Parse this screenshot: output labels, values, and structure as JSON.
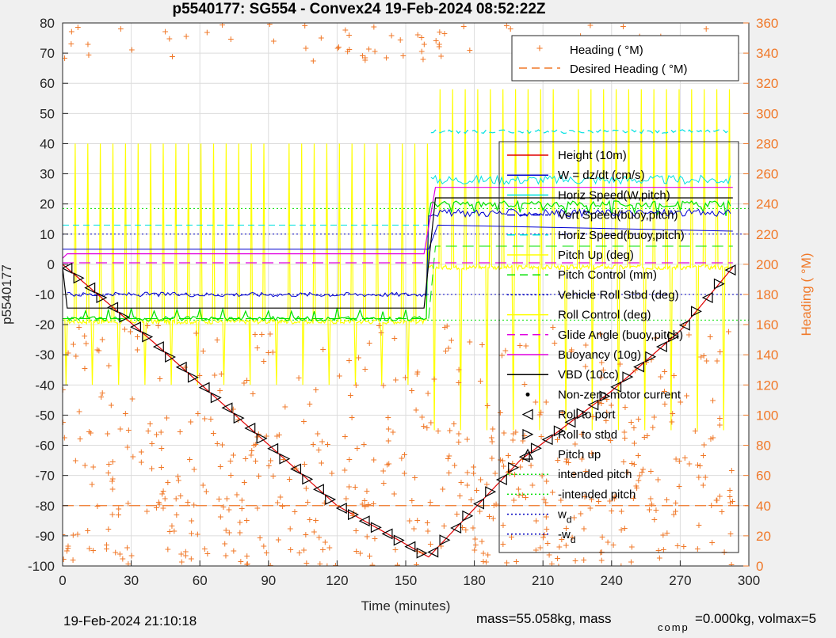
{
  "chart_data": {
    "type": "line",
    "title": "p5540177: SG554 - Convex24 19-Feb-2024 08:52:22Z",
    "xlabel": "Time (minutes)",
    "ylabel": "p5540177",
    "y2label": "Heading (  °M)",
    "xlim": [
      0,
      300
    ],
    "ylim": [
      -100,
      80
    ],
    "y2lim": [
      0,
      360
    ],
    "x_ticks": [
      "0",
      "30",
      "60",
      "90",
      "120",
      "150",
      "180",
      "210",
      "240",
      "270",
      "300"
    ],
    "y_ticks": [
      "80",
      "70",
      "60",
      "50",
      "40",
      "30",
      "20",
      "10",
      "0",
      "-10",
      "-20",
      "-30",
      "-40",
      "-50",
      "-60",
      "-70",
      "-80",
      "-90",
      "-100"
    ],
    "y2_ticks": [
      "360",
      "340",
      "320",
      "300",
      "280",
      "260",
      "240",
      "220",
      "200",
      "180",
      "160",
      "140",
      "120",
      "100",
      "80",
      "60",
      "40",
      "20",
      "0"
    ],
    "grid": true,
    "colors": {
      "height": "#e00000",
      "w": "#0000d0",
      "cyan": "#00e0e0",
      "yellow": "#ffff00",
      "green": "#00e000",
      "magenta": "#e000e0",
      "black": "#000000",
      "orange": "#f07828",
      "blue_dot": "#0000c0"
    },
    "heading_legend": {
      "placement": "top-right",
      "entries": [
        "Heading (  °M)",
        "Desired Heading (   °M)"
      ]
    },
    "main_legend": {
      "placement": "right",
      "entries": [
        {
          "label": "Height (10m)",
          "style": "line",
          "color": "#e00000"
        },
        {
          "label": "W = dz/dt (cm/s)",
          "style": "line",
          "color": "#0000d0"
        },
        {
          "label": "Horiz Speed(W,pitch)",
          "style": "line",
          "color": "#00e0e0"
        },
        {
          "label": "Vert Speed(buoy,pitch)",
          "style": "dash",
          "color": "#0000d0"
        },
        {
          "label": "Horiz Speed(buoy,pitch)",
          "style": "dash",
          "color": "#00e0e0"
        },
        {
          "label": "Pitch Up (deg)",
          "style": "line",
          "color": "#ffff00"
        },
        {
          "label": "Pitch Control (mm)",
          "style": "dash",
          "color": "#00e000"
        },
        {
          "label": "Vehicle Roll Stbd (deg)",
          "style": "dot",
          "color": "#0000c0"
        },
        {
          "label": "Roll Control (deg)",
          "style": "line",
          "color": "#ffff00"
        },
        {
          "label": "Glide Angle (buoy,pitch)",
          "style": "dash",
          "color": "#e000e0"
        },
        {
          "label": "Buoyancy (10g)",
          "style": "line",
          "color": "#e000e0"
        },
        {
          "label": "VBD (10cc)",
          "style": "line",
          "color": "#000000"
        },
        {
          "label": "Non-zero motor current",
          "style": "dotmark",
          "color": "#000000"
        },
        {
          "label": "Roll to port",
          "style": "tri-left",
          "color": "#000000"
        },
        {
          "label": "Roll to stbd",
          "style": "tri-right",
          "color": "#000000"
        },
        {
          "label": "Pitch up",
          "style": "tri-up",
          "color": "#000000"
        },
        {
          "label": "intended pitch",
          "style": "dot",
          "color": "#00e000"
        },
        {
          "label": "-intended pitch",
          "style": "dot",
          "color": "#00e000"
        },
        {
          "label": "w",
          "sub": "d",
          "style": "dot",
          "color": "#0000c0"
        },
        {
          "label": "-w",
          "sub": "d",
          "style": "dot",
          "color": "#0000c0"
        }
      ]
    },
    "series": [
      {
        "name": "Height (10m)",
        "x": [
          0,
          40,
          80,
          120,
          160,
          200,
          240,
          270,
          293
        ],
        "y": [
          0,
          -26,
          -53,
          -80,
          -97,
          -65,
          -42,
          -22,
          -1
        ]
      },
      {
        "name": "VBD (10cc)",
        "x": [
          0,
          2,
          158,
          163,
          293
        ],
        "y": [
          -1,
          -14.5,
          -14.5,
          22,
          22
        ]
      },
      {
        "name": "Buoyancy (10g)",
        "x": [
          0,
          2,
          158,
          163,
          293
        ],
        "y": [
          2,
          3.5,
          3.5,
          25.5,
          25.5
        ]
      },
      {
        "name": "Glide Angle (buoy,pitch)",
        "x": [
          0,
          160,
          293
        ],
        "y": [
          0.5,
          0.5,
          0.5
        ]
      },
      {
        "name": "Pitch Control (mm)",
        "x": [
          0,
          160,
          163,
          293
        ],
        "y": [
          -18,
          -18,
          6,
          6
        ]
      }
    ],
    "wd": 10,
    "intended_pitch": 18.5,
    "footer_left": "19-Feb-2024 21:10:18",
    "footer_right": "mass=55.058kg, mass",
    "footer_sub": "comp",
    "footer_tail": "=0.000kg, volmax=5"
  }
}
